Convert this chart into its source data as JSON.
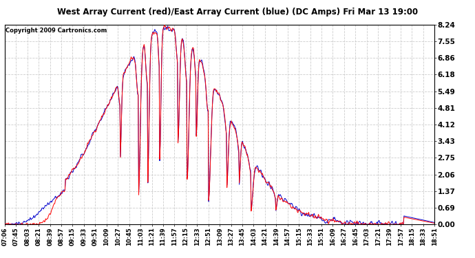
{
  "title": "West Array Current (red)/East Array Current (blue) (DC Amps) Fri Mar 13 19:00",
  "copyright": "Copyright 2009 Cartronics.com",
  "y_ticks": [
    0.0,
    0.69,
    1.37,
    2.06,
    2.75,
    3.43,
    4.12,
    4.81,
    5.49,
    6.18,
    6.86,
    7.55,
    8.24
  ],
  "ylim": [
    0.0,
    8.24
  ],
  "x_labels": [
    "07:06",
    "07:45",
    "08:03",
    "08:21",
    "08:39",
    "08:57",
    "09:15",
    "09:33",
    "09:51",
    "10:09",
    "10:27",
    "10:45",
    "11:03",
    "11:21",
    "11:39",
    "11:57",
    "12:15",
    "12:33",
    "12:51",
    "13:09",
    "13:27",
    "13:45",
    "14:03",
    "14:21",
    "14:39",
    "14:57",
    "15:15",
    "15:33",
    "15:51",
    "16:09",
    "16:27",
    "16:45",
    "17:03",
    "17:21",
    "17:39",
    "17:57",
    "18:15",
    "18:33",
    "18:51"
  ],
  "plot_bg": "#ffffff",
  "grid_color": "#cccccc",
  "red_color": "#ff0000",
  "blue_color": "#0000cc",
  "title_bg": "#ffffff",
  "border_color": "#000000"
}
